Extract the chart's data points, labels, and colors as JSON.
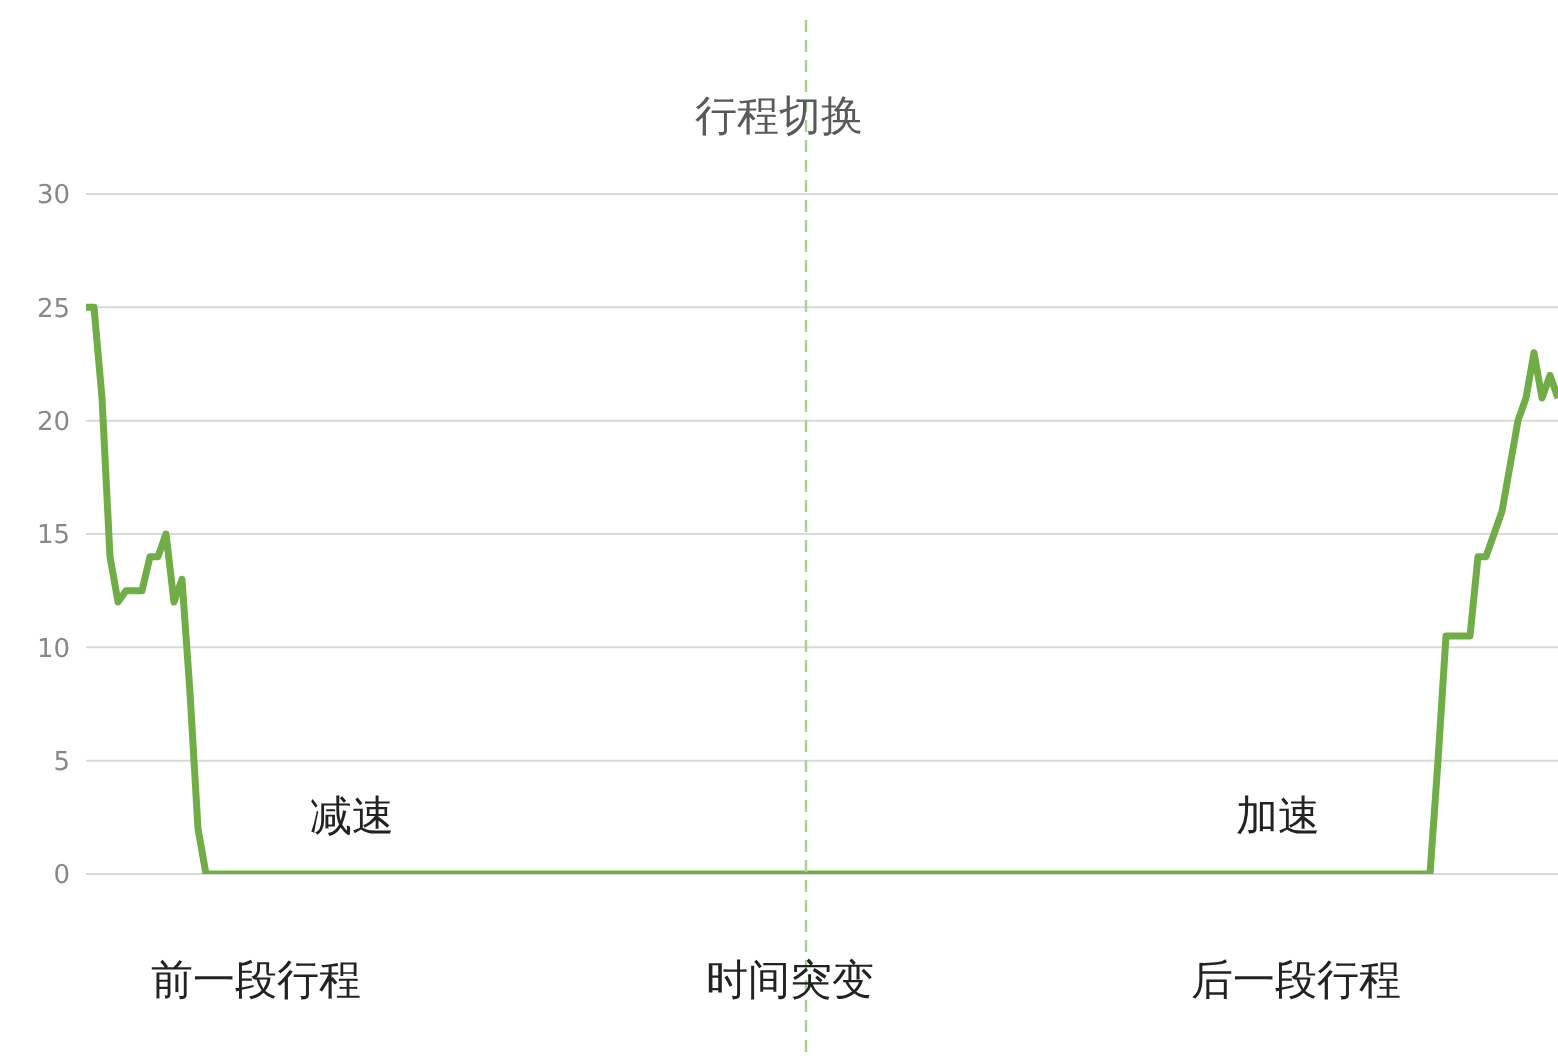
{
  "chart_data": {
    "type": "line",
    "title": "行程切换",
    "categories": [
      null,
      null,
      null,
      null,
      null,
      null,
      null,
      null,
      null,
      null,
      null,
      null,
      null,
      null,
      null,
      null,
      null,
      null,
      null,
      null,
      null,
      null,
      null,
      null,
      null,
      null,
      null,
      null,
      null,
      null,
      null,
      null,
      null,
      null,
      null,
      null,
      null,
      null,
      null,
      null,
      null,
      null,
      null,
      null,
      null,
      null,
      null,
      null,
      null,
      null,
      null,
      null,
      null,
      null,
      null,
      null,
      null,
      null,
      null,
      null,
      null,
      null,
      null,
      null,
      null,
      null,
      null,
      null,
      null,
      null,
      null,
      null,
      null,
      null,
      null,
      null,
      null,
      null,
      null,
      null,
      null,
      null,
      null,
      null,
      null,
      null,
      null,
      null,
      null,
      null,
      null,
      null,
      null,
      null,
      null,
      null,
      null,
      null,
      null,
      null,
      null,
      null,
      null,
      null,
      null,
      null,
      null,
      null,
      null,
      null,
      null,
      null,
      null,
      null,
      null,
      null,
      null,
      null,
      null,
      null,
      null,
      null,
      null,
      null,
      null,
      null,
      null,
      null,
      null,
      null,
      null,
      null,
      null,
      null,
      null,
      null,
      null,
      null,
      null,
      null,
      null,
      null,
      null,
      null,
      null,
      null,
      null,
      null,
      null,
      null,
      null,
      null,
      null,
      null,
      null,
      null,
      null,
      null,
      null,
      null,
      null,
      null,
      null,
      null,
      null,
      null,
      null,
      null,
      null,
      null,
      null,
      null,
      null,
      null,
      null,
      null,
      null,
      null,
      null,
      null,
      null,
      null,
      null,
      null,
      null
    ],
    "series": [
      {
        "color": "#70ad47",
        "values": [
          25,
          25,
          21,
          14,
          12,
          12.5,
          12.5,
          12.5,
          14,
          14,
          15,
          12,
          13,
          8,
          2,
          0,
          0,
          0,
          0,
          0,
          0,
          0,
          0,
          0,
          0,
          0,
          0,
          0,
          0,
          0,
          0,
          0,
          0,
          0,
          0,
          0,
          0,
          0,
          0,
          0,
          0,
          0,
          0,
          0,
          0,
          0,
          0,
          0,
          0,
          0,
          0,
          0,
          0,
          0,
          0,
          0,
          0,
          0,
          0,
          0,
          0,
          0,
          0,
          0,
          0,
          0,
          0,
          0,
          0,
          0,
          0,
          0,
          0,
          0,
          0,
          0,
          0,
          0,
          0,
          0,
          0,
          0,
          0,
          0,
          0,
          0,
          0,
          0,
          0,
          0,
          0,
          0,
          0,
          0,
          0,
          0,
          0,
          0,
          0,
          0,
          0,
          0,
          0,
          0,
          0,
          0,
          0,
          0,
          0,
          0,
          0,
          0,
          0,
          0,
          0,
          0,
          0,
          0,
          0,
          0,
          0,
          0,
          0,
          0,
          0,
          0,
          0,
          0,
          0,
          0,
          0,
          0,
          0,
          0,
          0,
          0,
          0,
          0,
          0,
          0,
          0,
          0,
          0,
          0,
          0,
          0,
          0,
          0,
          0,
          0,
          0,
          0,
          0,
          0,
          0,
          0,
          0,
          0,
          0,
          0,
          0,
          0,
          0,
          0,
          0,
          0,
          0,
          0,
          0,
          5,
          10.5,
          10.5,
          10.5,
          10.5,
          14,
          14,
          15,
          16,
          18,
          20,
          21,
          23,
          21,
          22,
          21
        ]
      }
    ],
    "ylim": [
      0,
      30
    ],
    "yticks": [
      0,
      5,
      10,
      15,
      20,
      25,
      30
    ],
    "grid": "y",
    "tick_labels": "y",
    "marker": "none",
    "line_style": "solid",
    "annotations": [
      "减速",
      "加速",
      "前一段行程",
      "时间突变",
      "后一段行程"
    ]
  }
}
